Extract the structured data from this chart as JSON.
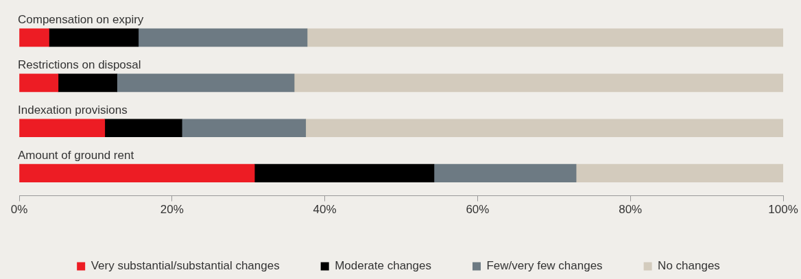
{
  "chart_data": {
    "type": "bar",
    "orientation": "horizontal",
    "stacked": true,
    "categories": [
      "Compensation on expiry",
      "Restrictions on disposal",
      "Indexation provisions",
      "Amount of ground rent"
    ],
    "series": [
      {
        "name": "Very substantial/substantial changes",
        "color": "#ed1c24",
        "values": [
          3.9,
          5.1,
          11.2,
          30.8
        ]
      },
      {
        "name": "Moderate changes",
        "color": "#000000",
        "values": [
          11.7,
          7.7,
          10.1,
          23.5
        ]
      },
      {
        "name": "Few/very few changes",
        "color": "#6d7a83",
        "values": [
          22.1,
          23.2,
          16.2,
          18.6
        ]
      },
      {
        "name": "No changes",
        "color": "#d3cbbd",
        "values": [
          62.3,
          64.0,
          62.5,
          27.1
        ]
      }
    ],
    "xlim": [
      0,
      100
    ],
    "xticks": [
      {
        "value": 0,
        "label": "0%"
      },
      {
        "value": 20,
        "label": "20%"
      },
      {
        "value": 40,
        "label": "40%"
      },
      {
        "value": 60,
        "label": "60%"
      },
      {
        "value": 80,
        "label": "80%"
      },
      {
        "value": 100,
        "label": "100%"
      }
    ],
    "grid": false,
    "legend": "bottom"
  }
}
